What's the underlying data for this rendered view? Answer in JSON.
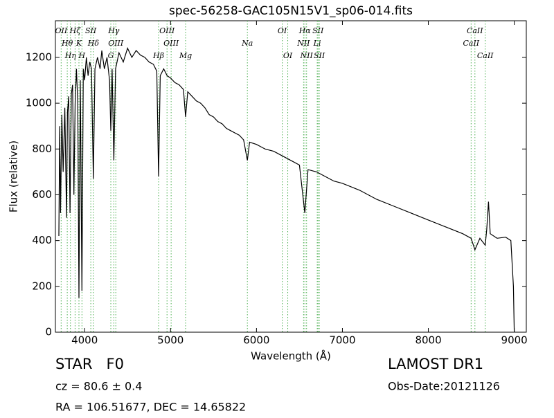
{
  "chart_data": {
    "type": "line",
    "title": "spec-56258-GAC105N15V1_sp06-014.fits",
    "x_label": "Wavelength (Å)",
    "y_label": "Flux (relative)",
    "xlim": [
      3660,
      9140
    ],
    "xticks": [
      4000,
      5000,
      6000,
      7000,
      8000,
      9000
    ],
    "ylim": [
      0,
      1360
    ],
    "yticks": [
      0,
      200,
      400,
      600,
      800,
      1000,
      1200
    ],
    "color": "#000000",
    "line_color": "#4caf50",
    "x": [
      3700,
      3710,
      3720,
      3735,
      3750,
      3770,
      3790,
      3800,
      3815,
      3830,
      3845,
      3860,
      3875,
      3890,
      3905,
      3920,
      3934,
      3950,
      3969,
      3985,
      4000,
      4020,
      4040,
      4060,
      4080,
      4102,
      4120,
      4150,
      4180,
      4200,
      4230,
      4260,
      4290,
      4305,
      4320,
      4340,
      4360,
      4400,
      4450,
      4500,
      4550,
      4600,
      4650,
      4700,
      4750,
      4800,
      4840,
      4861,
      4880,
      4920,
      4960,
      5000,
      5050,
      5100,
      5150,
      5175,
      5200,
      5250,
      5300,
      5350,
      5400,
      5450,
      5500,
      5550,
      5600,
      5650,
      5700,
      5750,
      5800,
      5850,
      5894,
      5920,
      6000,
      6100,
      6200,
      6300,
      6400,
      6500,
      6563,
      6600,
      6700,
      6800,
      6900,
      7000,
      7200,
      7400,
      7600,
      7800,
      8000,
      8200,
      8400,
      8498,
      8542,
      8600,
      8662,
      8680,
      8700,
      8720,
      8800,
      8900,
      8960,
      8990,
      9000
    ],
    "values": [
      420,
      900,
      520,
      950,
      700,
      980,
      500,
      960,
      1030,
      520,
      1040,
      1080,
      600,
      1000,
      1150,
      1000,
      150,
      1100,
      180,
      1150,
      1100,
      1200,
      1120,
      1180,
      1150,
      670,
      1150,
      1200,
      1150,
      1230,
      1150,
      1200,
      1100,
      880,
      1150,
      750,
      1150,
      1220,
      1180,
      1240,
      1200,
      1230,
      1210,
      1200,
      1180,
      1170,
      1140,
      680,
      1120,
      1150,
      1120,
      1110,
      1090,
      1080,
      1060,
      940,
      1050,
      1030,
      1010,
      1000,
      980,
      950,
      940,
      920,
      910,
      890,
      880,
      870,
      860,
      840,
      750,
      830,
      820,
      800,
      790,
      770,
      750,
      730,
      520,
      710,
      700,
      680,
      660,
      650,
      620,
      580,
      550,
      520,
      490,
      460,
      430,
      410,
      360,
      410,
      380,
      450,
      570,
      430,
      410,
      415,
      400,
      200,
      0
    ],
    "lines": [
      {
        "label": "OII",
        "wavelength": 3727
      },
      {
        "label": "Hθ",
        "wavelength": 3798
      },
      {
        "label": "Hη",
        "wavelength": 3835
      },
      {
        "label": "Hζ",
        "wavelength": 3889
      },
      {
        "label": "K",
        "wavelength": 3934
      },
      {
        "label": "H",
        "wavelength": 3969
      },
      {
        "label": "SII",
        "wavelength": 4072
      },
      {
        "label": "Hδ",
        "wavelength": 4102
      },
      {
        "label": "G",
        "wavelength": 4305
      },
      {
        "label": "Hγ",
        "wavelength": 4340
      },
      {
        "label": "OIII",
        "wavelength": 4363
      },
      {
        "label": "Hβ",
        "wavelength": 4861
      },
      {
        "label": "OIII",
        "wavelength": 4959
      },
      {
        "label": "OIII",
        "wavelength": 5007
      },
      {
        "label": "Mg",
        "wavelength": 5175
      },
      {
        "label": "OI",
        "wavelength": 6300
      },
      {
        "label": "Na",
        "wavelength": 5894
      },
      {
        "label": "OI",
        "wavelength": 6364
      },
      {
        "label": "Hα",
        "wavelength": 6563
      },
      {
        "label": "NII",
        "wavelength": 6548
      },
      {
        "label": "NII",
        "wavelength": 6583
      },
      {
        "label": "SII",
        "wavelength": 6716
      },
      {
        "label": "Li",
        "wavelength": 6707
      },
      {
        "label": "SII",
        "wavelength": 6731
      },
      {
        "label": "CaII",
        "wavelength": 8542
      },
      {
        "label": "CaII",
        "wavelength": 8498
      },
      {
        "label": "CaII",
        "wavelength": 8662
      }
    ]
  },
  "footer": {
    "object": "STAR   F0",
    "survey": "LAMOST DR1",
    "redshift": "cz = 80.6 ± 0.4",
    "obs_date": "Obs-Date:20121126",
    "coords": "RA = 106.51677, DEC = 14.65822"
  }
}
